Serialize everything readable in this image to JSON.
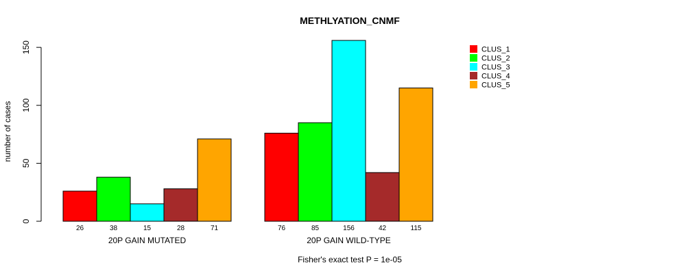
{
  "chart_data": {
    "type": "bar",
    "title": "METHLYATION_CNMF",
    "ylabel": "number of cases",
    "ylim": [
      0,
      156
    ],
    "yticks": [
      0,
      50,
      100,
      150
    ],
    "groups": [
      "20P GAIN MUTATED",
      "20P GAIN WILD-TYPE"
    ],
    "series": [
      {
        "name": "CLUS_1",
        "color": "#ff0000",
        "values": [
          26,
          76
        ]
      },
      {
        "name": "CLUS_2",
        "color": "#00ff00",
        "values": [
          38,
          85
        ]
      },
      {
        "name": "CLUS_3",
        "color": "#00ffff",
        "values": [
          15,
          156
        ]
      },
      {
        "name": "CLUS_4",
        "color": "#a52a2a",
        "values": [
          28,
          42
        ]
      },
      {
        "name": "CLUS_5",
        "color": "#ffa500",
        "values": [
          71,
          115
        ]
      }
    ],
    "data_labels": true,
    "legend_position": "top-right",
    "grid": false,
    "footnote": "Fisher's exact test P = 1e-05"
  }
}
